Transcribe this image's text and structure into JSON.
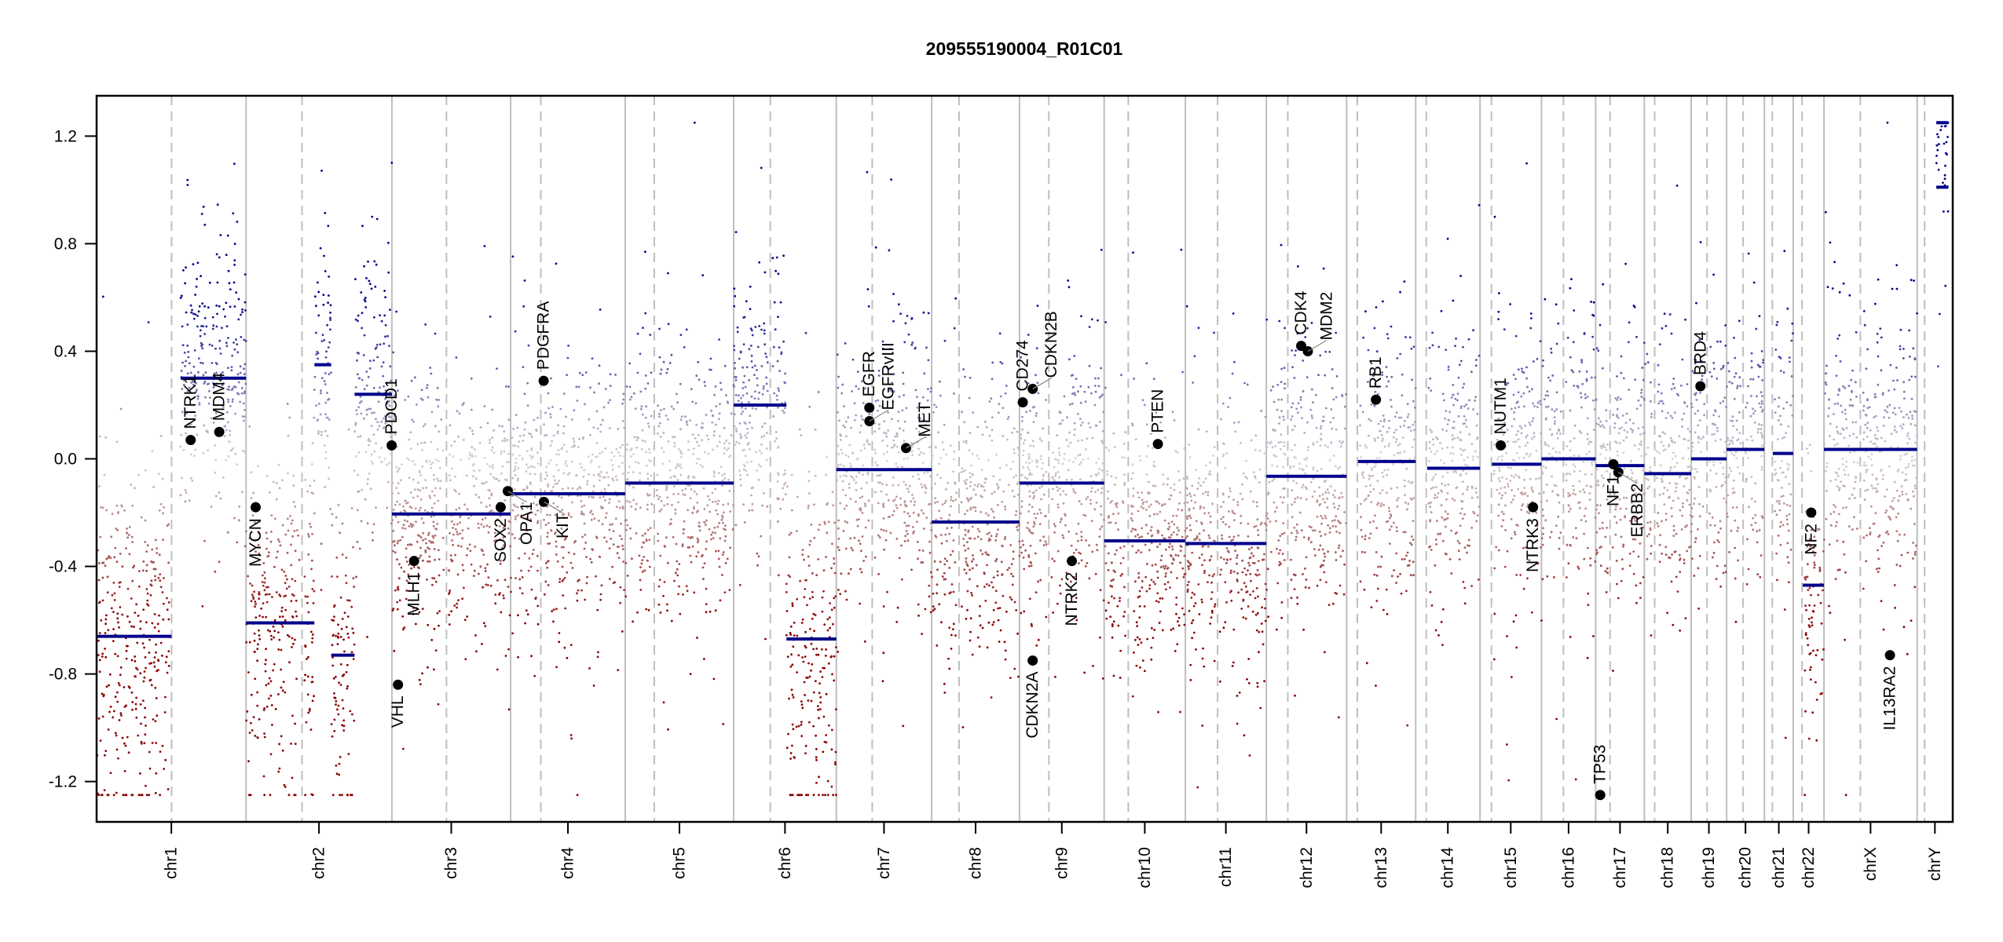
{
  "chart_data": {
    "type": "scatter",
    "title": "209555190004_R01C01",
    "xlabel": "",
    "ylabel": "",
    "ylim": [
      -1.35,
      1.35
    ],
    "yticks": [
      "-1.2",
      "-0.8",
      "-0.4",
      "0.0",
      "0.4",
      "0.8",
      "1.2"
    ],
    "grid": false,
    "colors": {
      "loss": "#8b0000",
      "neutral": "#d3d3d3",
      "gain": "#00008b",
      "segment": "#00008b",
      "gene": "#000000",
      "chrom_line": "#bebebe",
      "centromere_line": "#bebebe"
    },
    "chromosomes": [
      {
        "name": "chr1",
        "length": 249.25,
        "centromere": 125.0
      },
      {
        "name": "chr2",
        "length": 243.2,
        "centromere": 93.3
      },
      {
        "name": "chr3",
        "length": 198.0,
        "centromere": 91.0
      },
      {
        "name": "chr4",
        "length": 191.15,
        "centromere": 50.4
      },
      {
        "name": "chr5",
        "length": 180.9,
        "centromere": 48.4
      },
      {
        "name": "chr6",
        "length": 171.1,
        "centromere": 61.0
      },
      {
        "name": "chr7",
        "length": 159.1,
        "centromere": 59.9
      },
      {
        "name": "chr8",
        "length": 146.4,
        "centromere": 45.6
      },
      {
        "name": "chr9",
        "length": 141.2,
        "centromere": 49.0
      },
      {
        "name": "chr10",
        "length": 135.5,
        "centromere": 40.2
      },
      {
        "name": "chr11",
        "length": 135.0,
        "centromere": 53.7
      },
      {
        "name": "chr12",
        "length": 133.85,
        "centromere": 35.8
      },
      {
        "name": "chr13",
        "length": 115.2,
        "centromere": 17.9
      },
      {
        "name": "chr14",
        "length": 107.3,
        "centromere": 17.6
      },
      {
        "name": "chr15",
        "length": 102.5,
        "centromere": 19.0
      },
      {
        "name": "chr16",
        "length": 90.35,
        "centromere": 36.6
      },
      {
        "name": "chr17",
        "length": 81.2,
        "centromere": 24.0
      },
      {
        "name": "chr18",
        "length": 78.1,
        "centromere": 17.2
      },
      {
        "name": "chr19",
        "length": 59.1,
        "centromere": 26.5
      },
      {
        "name": "chr20",
        "length": 63.0,
        "centromere": 27.5
      },
      {
        "name": "chr21",
        "length": 48.1,
        "centromere": 13.2
      },
      {
        "name": "chr22",
        "length": 51.3,
        "centromere": 14.7
      },
      {
        "name": "chrX",
        "length": 155.3,
        "centromere": 60.6
      },
      {
        "name": "chrY",
        "length": 59.4,
        "centromere": 12.5
      }
    ],
    "segments": [
      {
        "chr": "chr1",
        "start": 0,
        "end": 125,
        "value": -0.66
      },
      {
        "chr": "chr1",
        "start": 140,
        "end": 249.25,
        "value": 0.3
      },
      {
        "chr": "chr2",
        "start": 0,
        "end": 114,
        "value": -0.61
      },
      {
        "chr": "chr2",
        "start": 114,
        "end": 142,
        "value": 0.35
      },
      {
        "chr": "chr2",
        "start": 142,
        "end": 181,
        "value": -0.73
      },
      {
        "chr": "chr2",
        "start": 181,
        "end": 243.2,
        "value": 0.24
      },
      {
        "chr": "chr3",
        "start": 0,
        "end": 198,
        "value": -0.205
      },
      {
        "chr": "chr4",
        "start": 0,
        "end": 191.15,
        "value": -0.13
      },
      {
        "chr": "chr5",
        "start": 0,
        "end": 180.9,
        "value": -0.09
      },
      {
        "chr": "chr6",
        "start": 0,
        "end": 88,
        "value": 0.2
      },
      {
        "chr": "chr6",
        "start": 88,
        "end": 171.1,
        "value": -0.67
      },
      {
        "chr": "chr7",
        "start": 0,
        "end": 159.1,
        "value": -0.04
      },
      {
        "chr": "chr8",
        "start": 0,
        "end": 146.4,
        "value": -0.235
      },
      {
        "chr": "chr9",
        "start": 0,
        "end": 141.2,
        "value": -0.09
      },
      {
        "chr": "chr10",
        "start": 0,
        "end": 135.5,
        "value": -0.305
      },
      {
        "chr": "chr11",
        "start": 0,
        "end": 135.0,
        "value": -0.315
      },
      {
        "chr": "chr12",
        "start": 0,
        "end": 133.85,
        "value": -0.065
      },
      {
        "chr": "chr13",
        "start": 19,
        "end": 115.2,
        "value": -0.01
      },
      {
        "chr": "chr14",
        "start": 19,
        "end": 107.3,
        "value": -0.035
      },
      {
        "chr": "chr15",
        "start": 20,
        "end": 102.5,
        "value": -0.02
      },
      {
        "chr": "chr16",
        "start": 0,
        "end": 90.35,
        "value": 0.0
      },
      {
        "chr": "chr17",
        "start": 0,
        "end": 81.2,
        "value": -0.025
      },
      {
        "chr": "chr18",
        "start": 0,
        "end": 78.1,
        "value": -0.055
      },
      {
        "chr": "chr19",
        "start": 0,
        "end": 59.1,
        "value": 0.0
      },
      {
        "chr": "chr20",
        "start": 0,
        "end": 63.0,
        "value": 0.035
      },
      {
        "chr": "chr21",
        "start": 14,
        "end": 48.1,
        "value": 0.02
      },
      {
        "chr": "chr22",
        "start": 16,
        "end": 51.3,
        "value": -0.47
      },
      {
        "chr": "chrX",
        "start": 0,
        "end": 155.3,
        "value": 0.035
      },
      {
        "chr": "chrY",
        "start": 32,
        "end": 52,
        "value": 1.25
      },
      {
        "chr": "chrY",
        "start": 32,
        "end": 52,
        "value": 1.01
      }
    ],
    "genes": [
      {
        "name": "NTRK1",
        "chr": "chr1",
        "pos": 156.8,
        "value": 0.07
      },
      {
        "name": "MDM4",
        "chr": "chr1",
        "pos": 204.5,
        "value": 0.1
      },
      {
        "name": "MYCN",
        "chr": "chr2",
        "pos": 16.0,
        "value": -0.18
      },
      {
        "name": "PDCD1",
        "chr": "chr2",
        "pos": 242.8,
        "value": 0.05
      },
      {
        "name": "VHL",
        "chr": "chr3",
        "pos": 10.2,
        "value": -0.84
      },
      {
        "name": "MLH1",
        "chr": "chr3",
        "pos": 37.0,
        "value": -0.38
      },
      {
        "name": "SOX2",
        "chr": "chr3",
        "pos": 181.4,
        "value": -0.18
      },
      {
        "name": "OPA1",
        "chr": "chr3",
        "pos": 193.3,
        "value": -0.12
      },
      {
        "name": "PDGFRA",
        "chr": "chr4",
        "pos": 55.1,
        "value": 0.29
      },
      {
        "name": "KIT",
        "chr": "chr4",
        "pos": 55.5,
        "value": -0.16
      },
      {
        "name": "EGFR",
        "chr": "chr7",
        "pos": 55.1,
        "value": 0.19
      },
      {
        "name": "EGFRvIII",
        "chr": "chr7",
        "pos": 55.2,
        "value": 0.14
      },
      {
        "name": "MET",
        "chr": "chr7",
        "pos": 116.3,
        "value": 0.04
      },
      {
        "name": "CD274",
        "chr": "chr9",
        "pos": 5.5,
        "value": 0.21
      },
      {
        "name": "CDKN2B",
        "chr": "chr9",
        "pos": 22.0,
        "value": 0.26
      },
      {
        "name": "CDKN2A",
        "chr": "chr9",
        "pos": 21.97,
        "value": -0.75
      },
      {
        "name": "NTRK2",
        "chr": "chr9",
        "pos": 87.3,
        "value": -0.38
      },
      {
        "name": "PTEN",
        "chr": "chr10",
        "pos": 89.6,
        "value": 0.055
      },
      {
        "name": "CDK4",
        "chr": "chr12",
        "pos": 58.1,
        "value": 0.42
      },
      {
        "name": "MDM2",
        "chr": "chr12",
        "pos": 69.2,
        "value": 0.4
      },
      {
        "name": "RB1",
        "chr": "chr13",
        "pos": 48.9,
        "value": 0.22
      },
      {
        "name": "NUTM1",
        "chr": "chr15",
        "pos": 34.6,
        "value": 0.05
      },
      {
        "name": "NTRK3",
        "chr": "chr15",
        "pos": 88.5,
        "value": -0.18
      },
      {
        "name": "TP53",
        "chr": "chr17",
        "pos": 7.6,
        "value": -1.25
      },
      {
        "name": "NF1",
        "chr": "chr17",
        "pos": 29.5,
        "value": -0.02
      },
      {
        "name": "ERBB2",
        "chr": "chr17",
        "pos": 37.8,
        "value": -0.05
      },
      {
        "name": "BRD4",
        "chr": "chr19",
        "pos": 15.4,
        "value": 0.27
      },
      {
        "name": "NF2",
        "chr": "chr22",
        "pos": 30.0,
        "value": -0.2
      },
      {
        "name": "IL13RA2",
        "chr": "chrX",
        "pos": 110.0,
        "value": -0.73
      }
    ]
  }
}
